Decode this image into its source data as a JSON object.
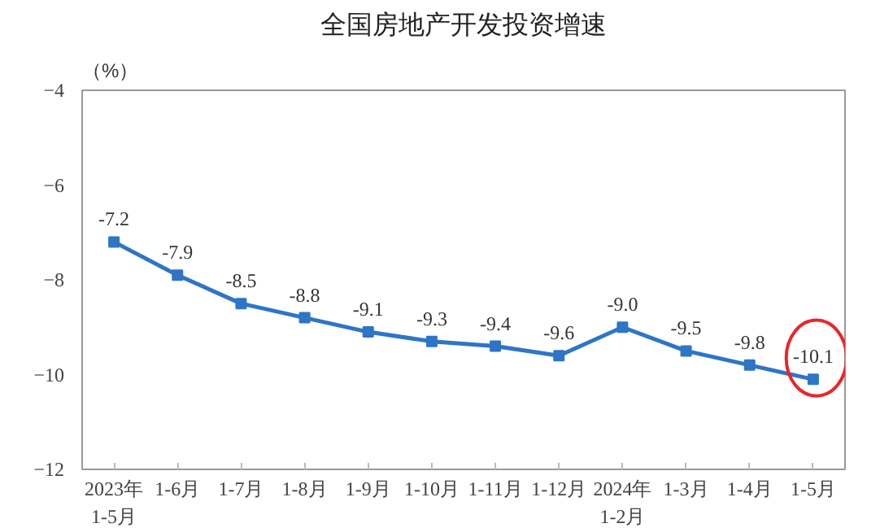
{
  "chart_data": {
    "type": "line",
    "title": "全国房地产开发投资增速",
    "ylabel": "（%）",
    "categories": [
      "2023年\n1-5月",
      "1-6月",
      "1-7月",
      "1-8月",
      "1-9月",
      "1-10月",
      "1-11月",
      "1-12月",
      "2024年\n1-2月",
      "1-3月",
      "1-4月",
      "1-5月"
    ],
    "series": [
      {
        "color": "#2e75c6",
        "values": [
          -7.2,
          -7.9,
          -8.5,
          -8.8,
          -9.1,
          -9.3,
          -9.4,
          -9.6,
          -9.0,
          -9.5,
          -9.8,
          -10.1
        ],
        "value_labels": [
          "-7.2",
          "-7.9",
          "-8.5",
          "-8.8",
          "-9.1",
          "-9.3",
          "-9.4",
          "-9.6",
          "-9.0",
          "-9.5",
          "-9.8",
          "-10.1"
        ]
      }
    ],
    "ylim": [
      -12,
      -4
    ],
    "yticks": [
      -12,
      -10,
      -8,
      -6,
      -4
    ],
    "grid": false,
    "marker": "square",
    "line_style": "solid"
  }
}
